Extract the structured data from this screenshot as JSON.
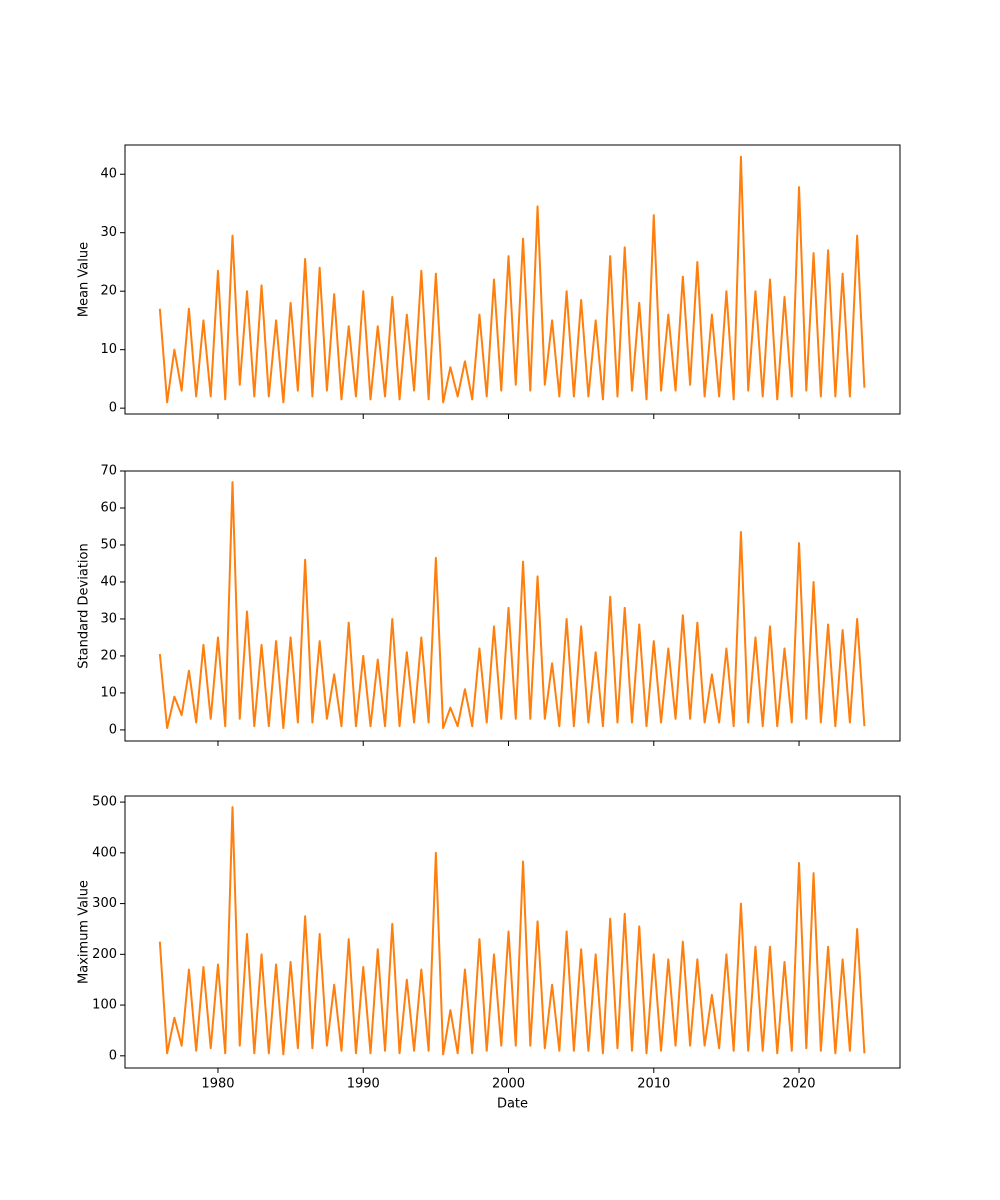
{
  "chart_data": [
    {
      "type": "line",
      "ylabel": "Mean Value",
      "x": [
        1976,
        1976.5,
        1977,
        1977.5,
        1978,
        1978.5,
        1979,
        1979.5,
        1980,
        1980.5,
        1981,
        1981.5,
        1982,
        1982.5,
        1983,
        1983.5,
        1984,
        1984.5,
        1985,
        1985.5,
        1986,
        1986.5,
        1987,
        1987.5,
        1988,
        1988.5,
        1989,
        1989.5,
        1990,
        1990.5,
        1991,
        1991.5,
        1992,
        1992.5,
        1993,
        1993.5,
        1994,
        1994.5,
        1995,
        1995.5,
        1996,
        1996.5,
        1997,
        1997.5,
        1998,
        1998.5,
        1999,
        1999.5,
        2000,
        2000.5,
        2001,
        2001.5,
        2002,
        2002.5,
        2003,
        2003.5,
        2004,
        2004.5,
        2005,
        2005.5,
        2006,
        2006.5,
        2007,
        2007.5,
        2008,
        2008.5,
        2009,
        2009.5,
        2010,
        2010.5,
        2011,
        2011.5,
        2012,
        2012.5,
        2013,
        2013.5,
        2014,
        2014.5,
        2015,
        2015.5,
        2016,
        2016.5,
        2017,
        2017.5,
        2018,
        2018.5,
        2019,
        2019.5,
        2020,
        2020.5,
        2021,
        2021.5,
        2022,
        2022.5,
        2023,
        2023.5,
        2024,
        2024.5
      ],
      "series": [
        {
          "color": "#ff7f0e",
          "values": [
            17,
            1,
            10,
            3,
            17,
            2,
            15,
            2,
            23.5,
            1.5,
            29.5,
            4,
            20,
            2,
            21,
            2,
            15,
            1,
            18,
            3,
            25.5,
            2,
            24,
            3,
            19.5,
            1.5,
            14,
            2,
            20,
            1.5,
            14,
            2,
            19,
            1.5,
            16,
            3,
            23.5,
            1.5,
            23,
            1,
            7,
            2,
            8,
            1.5,
            16,
            2,
            22,
            3,
            26,
            4,
            29,
            3,
            34.5,
            4,
            15,
            2,
            20,
            2,
            18.5,
            2,
            15,
            1.5,
            26,
            2,
            27.5,
            3,
            18,
            1.5,
            33,
            3,
            16,
            3,
            22.5,
            4,
            25,
            2,
            16,
            2,
            20,
            1.5,
            43,
            3,
            20,
            2,
            22,
            1.5,
            19,
            2,
            37.8,
            3,
            26.5,
            2,
            27,
            2,
            23,
            2,
            29.5,
            3.5
          ]
        }
      ],
      "xlim": [
        1973.6,
        2026.95
      ],
      "xticks": [
        1980,
        1990,
        2000,
        2010,
        2020
      ],
      "ylim": [
        -1,
        45
      ],
      "yticks": [
        0,
        10,
        20,
        30,
        40
      ]
    },
    {
      "type": "line",
      "ylabel": "Standard Deviation",
      "x": [
        1976,
        1976.5,
        1977,
        1977.5,
        1978,
        1978.5,
        1979,
        1979.5,
        1980,
        1980.5,
        1981,
        1981.5,
        1982,
        1982.5,
        1983,
        1983.5,
        1984,
        1984.5,
        1985,
        1985.5,
        1986,
        1986.5,
        1987,
        1987.5,
        1988,
        1988.5,
        1989,
        1989.5,
        1990,
        1990.5,
        1991,
        1991.5,
        1992,
        1992.5,
        1993,
        1993.5,
        1994,
        1994.5,
        1995,
        1995.5,
        1996,
        1996.5,
        1997,
        1997.5,
        1998,
        1998.5,
        1999,
        1999.5,
        2000,
        2000.5,
        2001,
        2001.5,
        2002,
        2002.5,
        2003,
        2003.5,
        2004,
        2004.5,
        2005,
        2005.5,
        2006,
        2006.5,
        2007,
        2007.5,
        2008,
        2008.5,
        2009,
        2009.5,
        2010,
        2010.5,
        2011,
        2011.5,
        2012,
        2012.5,
        2013,
        2013.5,
        2014,
        2014.5,
        2015,
        2015.5,
        2016,
        2016.5,
        2017,
        2017.5,
        2018,
        2018.5,
        2019,
        2019.5,
        2020,
        2020.5,
        2021,
        2021.5,
        2022,
        2022.5,
        2023,
        2023.5,
        2024,
        2024.5
      ],
      "series": [
        {
          "color": "#ff7f0e",
          "values": [
            20.5,
            0.5,
            9,
            4,
            16,
            2,
            23,
            3,
            25,
            1,
            67,
            3,
            32,
            1,
            23,
            1,
            24,
            0.5,
            25,
            2,
            46,
            2,
            24,
            3,
            15,
            1,
            29,
            1,
            20,
            1,
            19,
            1,
            30,
            1,
            21,
            2,
            25,
            2,
            46.5,
            0.5,
            6,
            1,
            11,
            1,
            22,
            2,
            28,
            3,
            33,
            3,
            45.5,
            3,
            41.5,
            3,
            18,
            1,
            30,
            1,
            28,
            2,
            21,
            1,
            36,
            2,
            33,
            2,
            28.5,
            1,
            24,
            2,
            22,
            3,
            31,
            3,
            29,
            2,
            15,
            2,
            22,
            1,
            53.5,
            2,
            25,
            1,
            28,
            1,
            22,
            2,
            50.5,
            3,
            40,
            2,
            28.5,
            1,
            27,
            2,
            30,
            1
          ]
        }
      ],
      "xlim": [
        1973.6,
        2026.95
      ],
      "xticks": [
        1980,
        1990,
        2000,
        2010,
        2020
      ],
      "ylim": [
        -3,
        70
      ],
      "yticks": [
        0,
        10,
        20,
        30,
        40,
        50,
        60,
        70
      ]
    },
    {
      "type": "line",
      "ylabel": "Maximum Value",
      "xlabel": "Date",
      "x": [
        1976,
        1976.5,
        1977,
        1977.5,
        1978,
        1978.5,
        1979,
        1979.5,
        1980,
        1980.5,
        1981,
        1981.5,
        1982,
        1982.5,
        1983,
        1983.5,
        1984,
        1984.5,
        1985,
        1985.5,
        1986,
        1986.5,
        1987,
        1987.5,
        1988,
        1988.5,
        1989,
        1989.5,
        1990,
        1990.5,
        1991,
        1991.5,
        1992,
        1992.5,
        1993,
        1993.5,
        1994,
        1994.5,
        1995,
        1995.5,
        1996,
        1996.5,
        1997,
        1997.5,
        1998,
        1998.5,
        1999,
        1999.5,
        2000,
        2000.5,
        2001,
        2001.5,
        2002,
        2002.5,
        2003,
        2003.5,
        2004,
        2004.5,
        2005,
        2005.5,
        2006,
        2006.5,
        2007,
        2007.5,
        2008,
        2008.5,
        2009,
        2009.5,
        2010,
        2010.5,
        2011,
        2011.5,
        2012,
        2012.5,
        2013,
        2013.5,
        2014,
        2014.5,
        2015,
        2015.5,
        2016,
        2016.5,
        2017,
        2017.5,
        2018,
        2018.5,
        2019,
        2019.5,
        2020,
        2020.5,
        2021,
        2021.5,
        2022,
        2022.5,
        2023,
        2023.5,
        2024,
        2024.5
      ],
      "series": [
        {
          "color": "#ff7f0e",
          "values": [
            225,
            5,
            75,
            20,
            170,
            10,
            175,
            15,
            180,
            5,
            490,
            20,
            240,
            5,
            200,
            5,
            180,
            3,
            185,
            15,
            275,
            15,
            240,
            20,
            140,
            10,
            230,
            5,
            175,
            5,
            210,
            10,
            260,
            5,
            150,
            10,
            170,
            10,
            400,
            3,
            90,
            5,
            170,
            5,
            230,
            10,
            200,
            20,
            245,
            20,
            383,
            20,
            265,
            15,
            140,
            10,
            245,
            10,
            210,
            10,
            200,
            5,
            270,
            15,
            280,
            10,
            255,
            5,
            200,
            10,
            190,
            20,
            225,
            20,
            190,
            20,
            120,
            15,
            200,
            10,
            300,
            10,
            215,
            10,
            215,
            5,
            185,
            10,
            380,
            15,
            360,
            10,
            215,
            5,
            190,
            10,
            250,
            5
          ]
        }
      ],
      "xlim": [
        1973.6,
        2026.95
      ],
      "xticks": [
        1980,
        1990,
        2000,
        2010,
        2020
      ],
      "ylim": [
        -24,
        512
      ],
      "yticks": [
        0,
        100,
        200,
        300,
        400,
        500
      ]
    }
  ]
}
